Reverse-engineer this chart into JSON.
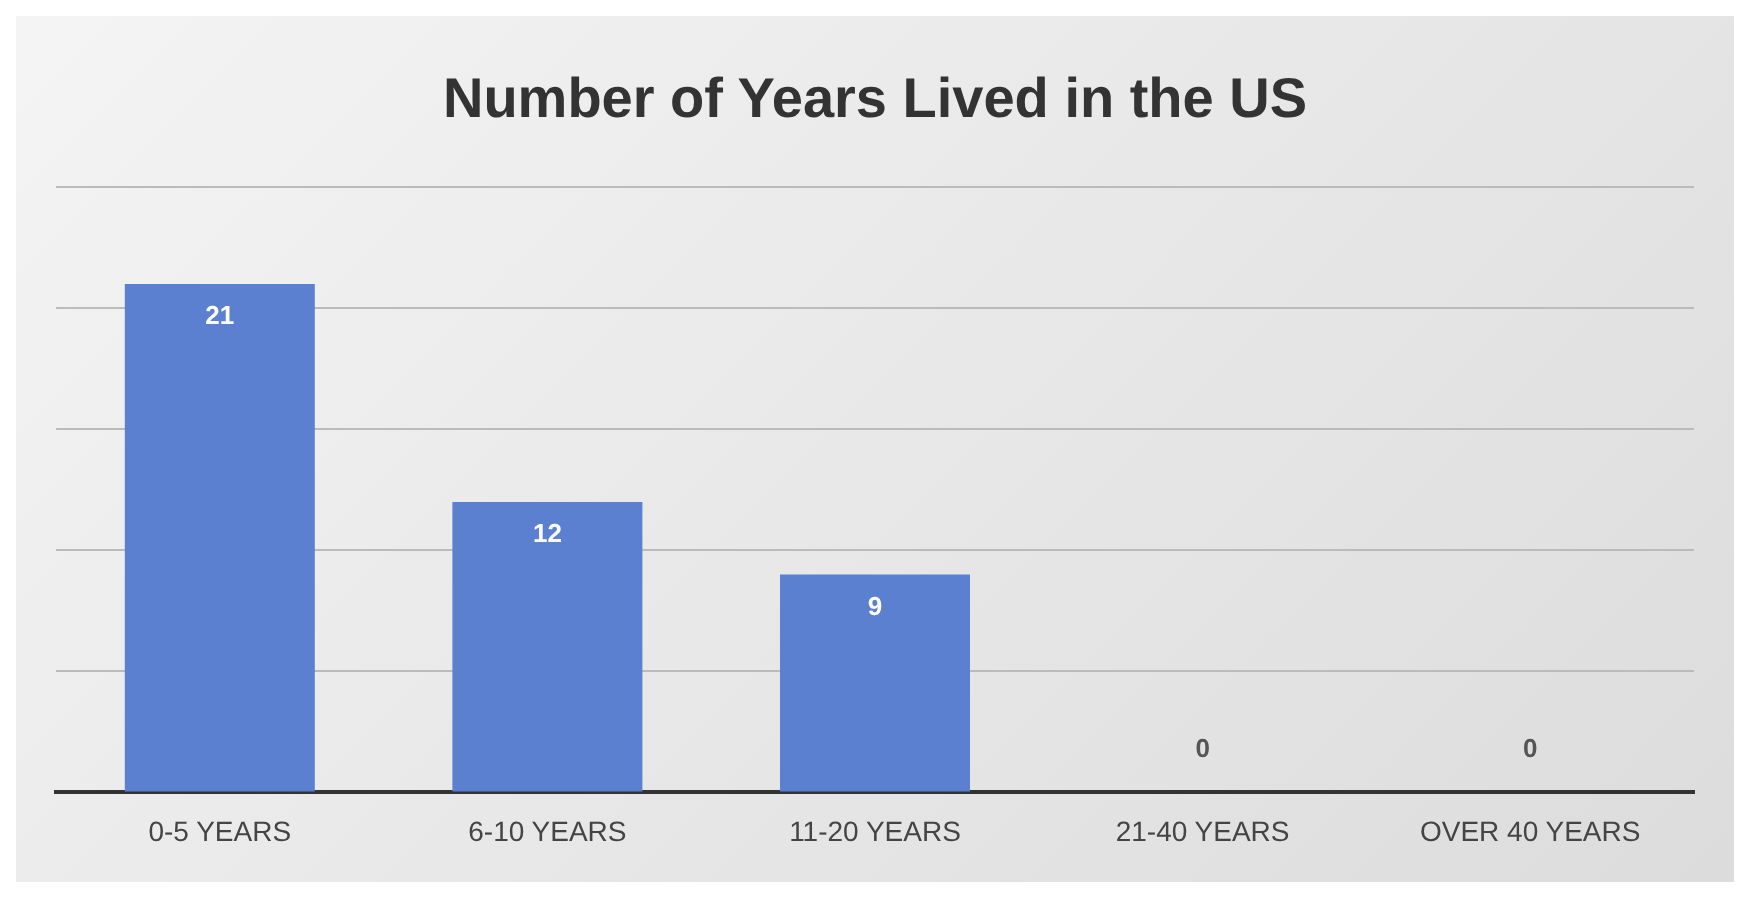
{
  "chart_data": {
    "type": "bar",
    "title": "Number of Years Lived in the US",
    "categories": [
      "0-5 YEARS",
      "6-10 YEARS",
      "11-20 YEARS",
      "21-40 YEARS",
      "OVER 40 YEARS"
    ],
    "values": [
      21,
      12,
      9,
      0,
      0
    ],
    "color": "#5b80cf",
    "ylim": [
      0,
      25
    ],
    "yticks": [
      {
        "value": 0,
        "label": null
      },
      {
        "value": 5,
        "label": null
      },
      {
        "value": 10,
        "label": null
      },
      {
        "value": 15,
        "label": null
      },
      {
        "value": 20,
        "label": null
      },
      {
        "value": 25,
        "label": null
      }
    ],
    "grid": "y",
    "tick_labels": "x",
    "data_labels": true,
    "legend": false
  }
}
